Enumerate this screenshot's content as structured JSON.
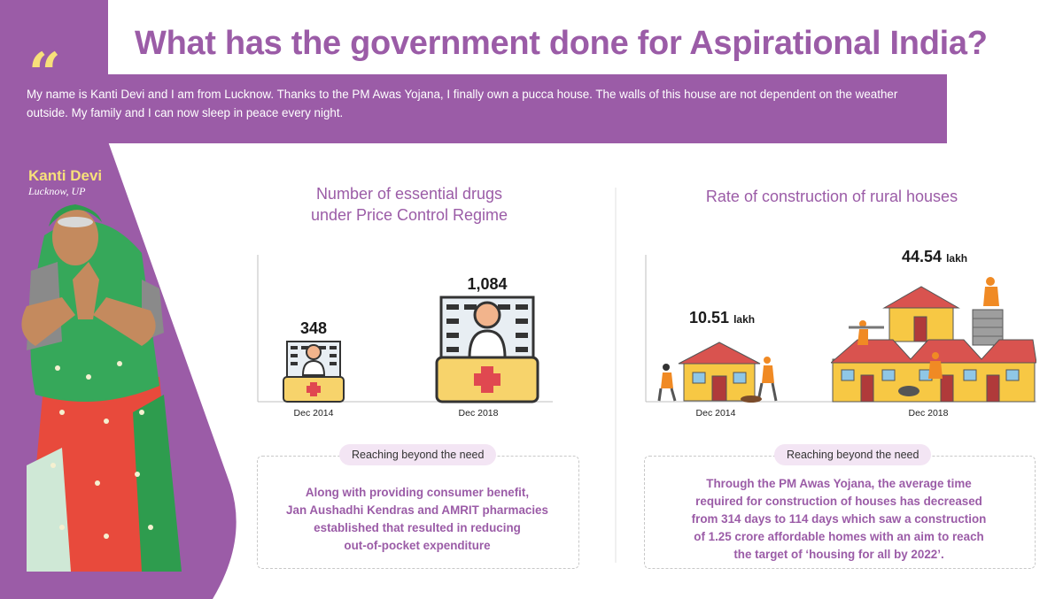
{
  "header": {
    "title": "What has the government done for Aspirational India?"
  },
  "testimonial": {
    "quote_icon": "quote-icon",
    "text": "My name is Kanti Devi and I am from Lucknow. Thanks to the PM Awas Yojana, I finally own a pucca house. The walls of this house are not dependent on the weather outside. My family and I can now sleep in peace every night.",
    "person_name": "Kanti Devi",
    "person_location": "Lucknow, UP"
  },
  "colors": {
    "purple": "#9b5ca7",
    "yellow": "#f7e07a",
    "pill_bg": "#f3e5f4"
  },
  "drugs_panel": {
    "title_line1": "Number of essential drugs",
    "title_line2": "under Price Control Regime",
    "items": [
      {
        "label": "Dec 2014",
        "value": "348",
        "value_num": 348,
        "icon": "medicine-kit-icon"
      },
      {
        "label": "Dec 2018",
        "value": "1,084",
        "value_num": 1084,
        "icon": "medicine-kit-icon"
      }
    ],
    "pill": "Reaching beyond the need",
    "note_lines": [
      "Along with providing consumer benefit,",
      "Jan Aushadhi Kendras and AMRIT pharmacies",
      "established that resulted in reducing",
      "out-of-pocket expenditure"
    ]
  },
  "housing_panel": {
    "title": "Rate of construction of rural houses",
    "items": [
      {
        "label": "Dec 2014",
        "value": "10.51",
        "unit": "lakh",
        "value_num": 10.51,
        "icon": "house-construction-icon"
      },
      {
        "label": "Dec 2018",
        "value": "44.54",
        "unit": "lakh",
        "value_num": 44.54,
        "icon": "house-construction-icon"
      }
    ],
    "pill": "Reaching beyond the need",
    "note_lines": [
      "Through the PM Awas Yojana, the average time",
      "required for construction of houses has decreased",
      "from 314 days to 114 days which saw a construction",
      "of 1.25 crore affordable homes  with an aim to reach",
      "the target of ‘housing for all by 2022’."
    ]
  }
}
